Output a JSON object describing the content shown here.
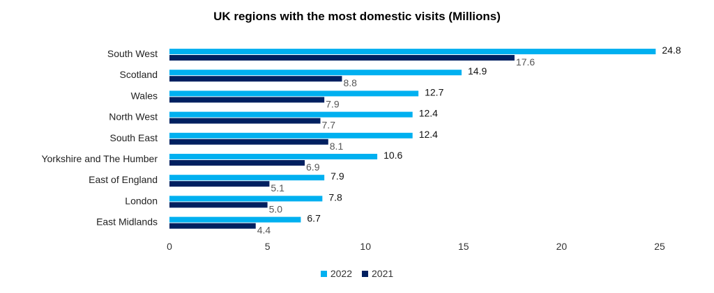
{
  "chart_data": {
    "type": "bar",
    "orientation": "horizontal",
    "title": "UK regions with the most domestic visits (Millions)",
    "categories": [
      "South West",
      "Scotland",
      "Wales",
      "North West",
      "South East",
      "Yorkshire and The Humber",
      "East of England",
      "London",
      "East Midlands"
    ],
    "series": [
      {
        "name": "2022",
        "color": "#00B0F0",
        "values": [
          24.8,
          14.9,
          12.7,
          12.4,
          12.4,
          10.6,
          7.9,
          7.8,
          6.7
        ],
        "labels": [
          "24.8",
          "14.9",
          "12.7",
          "12.4",
          "12.4",
          "10.6",
          "7.9",
          "7.8",
          "6.7"
        ]
      },
      {
        "name": "2021",
        "color": "#002060",
        "values": [
          17.6,
          8.8,
          7.9,
          7.7,
          8.1,
          6.9,
          5.1,
          5.0,
          4.4
        ],
        "labels": [
          "17.6",
          "8.8",
          "7.9",
          "7.7",
          "8.1",
          "6.9",
          "5.1",
          "5.0",
          "4.4"
        ]
      }
    ],
    "xlim": [
      0,
      25
    ],
    "xticks": [
      "0",
      "5",
      "10",
      "15",
      "20",
      "25"
    ],
    "legend_position": "bottom",
    "grid": false
  }
}
